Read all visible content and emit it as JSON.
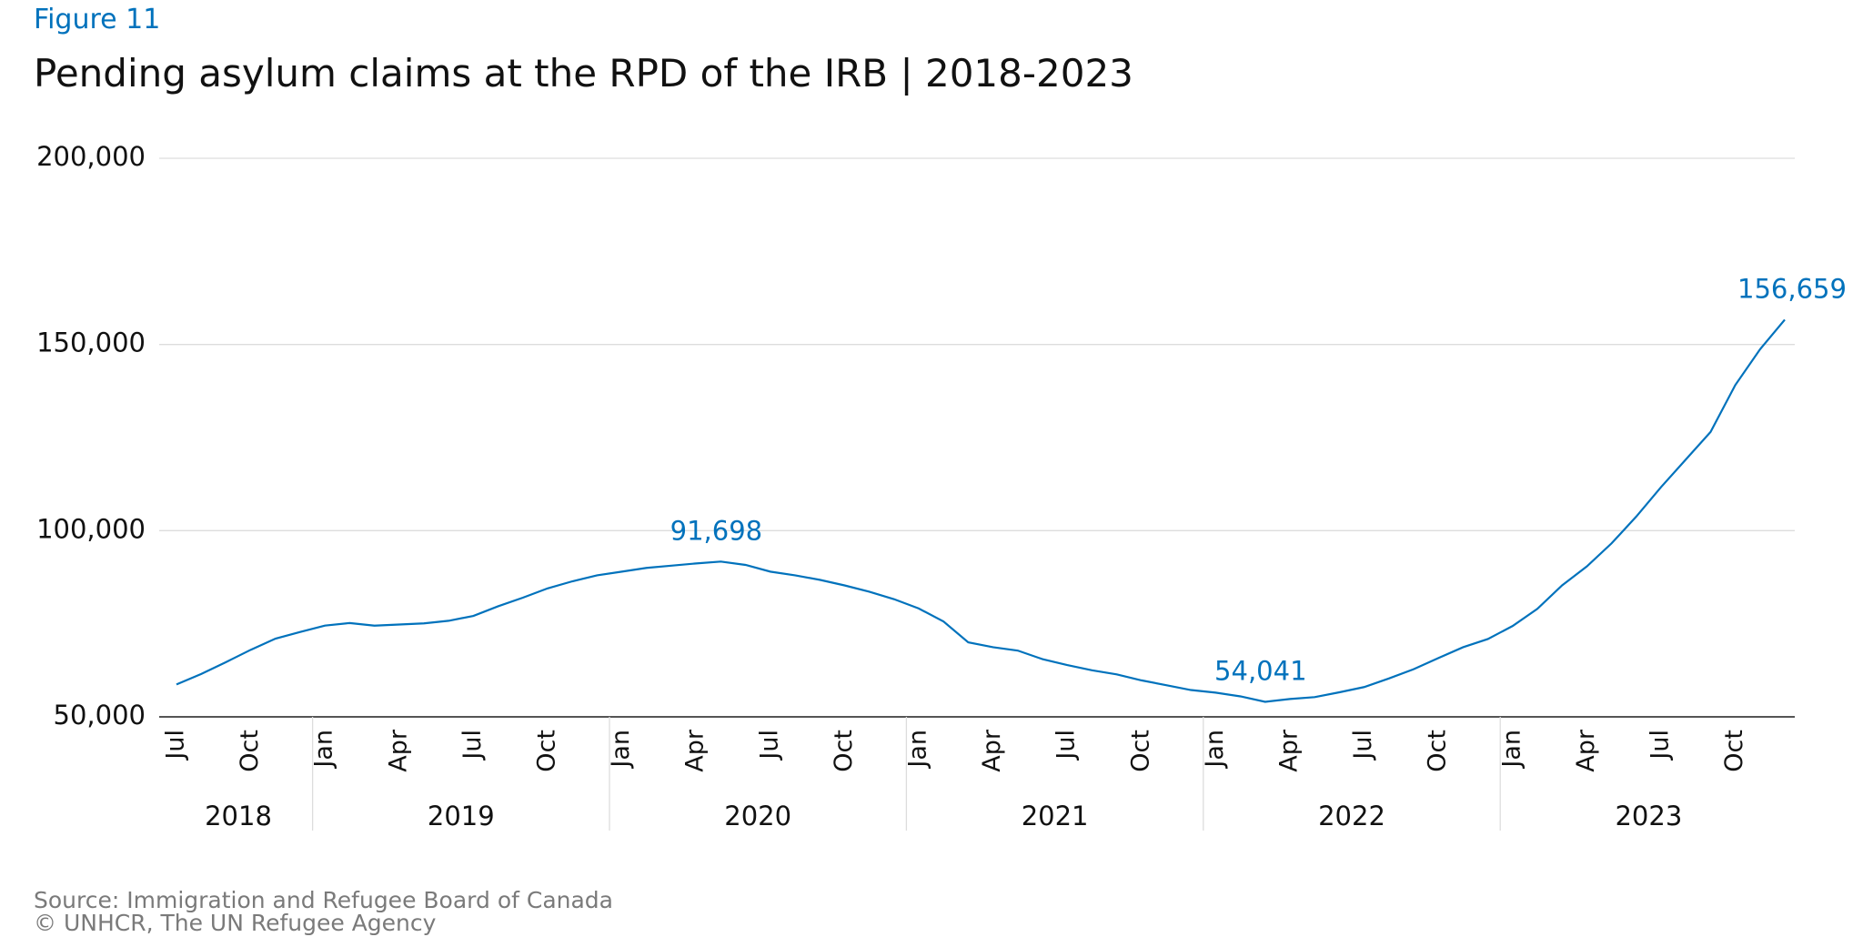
{
  "chart_data": {
    "type": "line",
    "figure_label": "Figure 11",
    "title": "Pending asylum claims at the RPD of the IRB | 2018-2023",
    "source": "Source: Immigration and Refugee Board of Canada",
    "credit": "© UNHCR, The UN Refugee Agency",
    "categories": [
      "Jul",
      null,
      null,
      "Oct",
      null,
      null,
      "Jan",
      null,
      null,
      "Apr",
      null,
      null,
      "Jul",
      null,
      null,
      "Oct",
      null,
      null,
      "Jan",
      null,
      null,
      "Apr",
      null,
      null,
      "Jul",
      null,
      null,
      "Oct",
      null,
      null,
      "Jan",
      null,
      null,
      "Apr",
      null,
      null,
      "Jul",
      null,
      null,
      "Oct",
      null,
      null,
      "Jan",
      null,
      null,
      "Apr",
      null,
      null,
      "Jul",
      null,
      null,
      "Oct",
      null,
      null,
      "Jan",
      null,
      null,
      "Apr",
      null,
      null,
      "Jul",
      null,
      null,
      "Oct",
      null,
      null
    ],
    "years": [
      "2018",
      "2019",
      "2020",
      "2021",
      "2022",
      "2023"
    ],
    "series": [
      {
        "name": "Pending claims",
        "color": "#0072bc",
        "values": [
          58700,
          61500,
          64700,
          68000,
          71000,
          72800,
          74500,
          75200,
          74500,
          74800,
          75100,
          75800,
          77100,
          79700,
          82000,
          84500,
          86400,
          88000,
          89000,
          90000,
          90600,
          91200,
          91698,
          90800,
          89000,
          88000,
          86800,
          85300,
          83600,
          81600,
          79100,
          75600,
          70000,
          68700,
          67800,
          65500,
          63900,
          62500,
          61400,
          59800,
          58500,
          57200,
          56500,
          55500,
          54041,
          54800,
          55300,
          56600,
          58000,
          60300,
          62800,
          65800,
          68700,
          70900,
          74400,
          79000,
          85300,
          90400,
          96600,
          103800,
          111700,
          119100,
          126500,
          139100,
          148700,
          156659
        ],
        "value_labels": [
          null,
          null,
          null,
          null,
          null,
          null,
          null,
          null,
          null,
          null,
          null,
          null,
          null,
          null,
          null,
          null,
          null,
          null,
          null,
          null,
          null,
          null,
          "91,698",
          null,
          null,
          null,
          null,
          null,
          null,
          null,
          null,
          null,
          null,
          null,
          null,
          null,
          null,
          null,
          null,
          null,
          null,
          null,
          null,
          null,
          "54,041",
          null,
          null,
          null,
          null,
          null,
          null,
          null,
          null,
          null,
          null,
          null,
          null,
          null,
          null,
          null,
          null,
          null,
          null,
          null,
          null,
          "156,659"
        ]
      }
    ],
    "ylim": [
      50000,
      200000
    ],
    "yticks": [
      {
        "value": 50000,
        "label": "50,000"
      },
      {
        "value": 100000,
        "label": "100,000"
      },
      {
        "value": 150000,
        "label": "150,000"
      },
      {
        "value": 200000,
        "label": "200,000"
      }
    ],
    "grid": true
  }
}
